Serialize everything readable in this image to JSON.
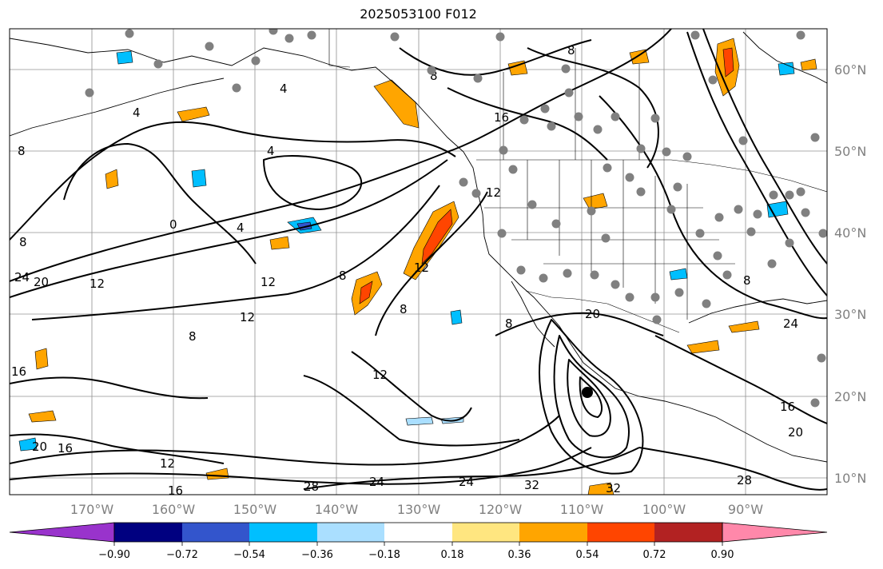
{
  "title": "2025053100 F012",
  "lat_labels": [
    "60°N",
    "50°N",
    "40°N",
    "30°N",
    "20°N",
    "10°N"
  ],
  "lon_labels": [
    "170°W",
    "160°W",
    "150°W",
    "140°W",
    "130°W",
    "120°W",
    "110°W",
    "100°W",
    "90°W"
  ],
  "colorbar": {
    "colors": [
      "#9933cc",
      "#000080",
      "#3355cc",
      "#00bfff",
      "#aadfff",
      "#ffffff",
      "#ffe680",
      "#ffa500",
      "#ff4500",
      "#b22222",
      "#ff88aa"
    ],
    "tick_labels": [
      "−0.90",
      "−0.72",
      "−0.54",
      "−0.36",
      "−0.18",
      "0.18",
      "0.36",
      "0.54",
      "0.72",
      "0.90"
    ]
  },
  "contour_labels": [
    "4",
    "4",
    "4",
    "4",
    "8",
    "8",
    "8",
    "8",
    "8",
    "8",
    "8",
    "8",
    "12",
    "12",
    "12",
    "12",
    "12",
    "12",
    "12",
    "16",
    "16",
    "16",
    "16",
    "20",
    "20",
    "20",
    "24",
    "24",
    "24",
    "24",
    "28",
    "28",
    "32",
    "32",
    "0",
    "20",
    "8",
    "16"
  ],
  "icons": {
    "station": "station-dot-icon",
    "low_center": "low-center-icon"
  }
}
